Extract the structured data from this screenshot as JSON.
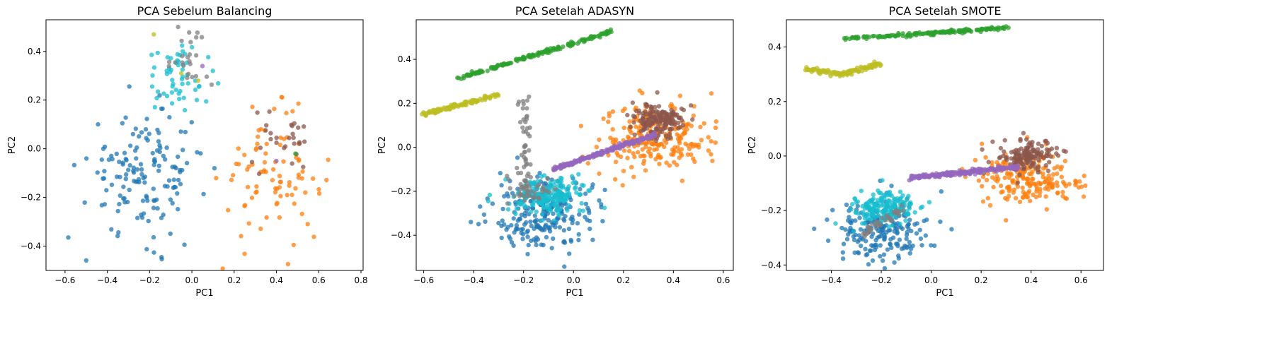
{
  "colors": {
    "c0": "#1f77b4",
    "c1": "#ff7f0e",
    "c2": "#2ca02c",
    "c3": "#9467bd",
    "c4": "#8c564b",
    "c5": "#7f7f7f",
    "c6": "#bcbd22",
    "c7": "#17becf"
  },
  "chart_data": [
    {
      "type": "scatter",
      "title": "PCA Sebelum Balancing",
      "xlabel": "PC1",
      "ylabel": "PC2",
      "xlim": [
        -0.69,
        0.81
      ],
      "ylim": [
        -0.5,
        0.53
      ],
      "xticks": [
        -0.6,
        -0.4,
        -0.2,
        0.0,
        0.2,
        0.4,
        0.6,
        0.8
      ],
      "xtick_labels": [
        "−0.6",
        "−0.4",
        "−0.2",
        "0.0",
        "0.2",
        "0.4",
        "0.6",
        "0.8"
      ],
      "yticks": [
        -0.4,
        -0.2,
        0.0,
        0.2,
        0.4
      ],
      "ytick_labels": [
        "−0.4",
        "−0.2",
        "0.0",
        "0.2",
        "0.4"
      ],
      "grid": false,
      "series": [
        {
          "color_key": "c0",
          "clusters": [
            {
              "cx": -0.22,
              "cy": -0.1,
              "sx": 0.14,
              "sy": 0.13,
              "n": 150
            }
          ]
        },
        {
          "color_key": "c1",
          "clusters": [
            {
              "cx": 0.38,
              "cy": -0.12,
              "sx": 0.12,
              "sy": 0.13,
              "n": 90
            }
          ]
        },
        {
          "color_key": "c4",
          "clusters": [
            {
              "cx": 0.42,
              "cy": 0.02,
              "sx": 0.08,
              "sy": 0.06,
              "n": 28
            }
          ]
        },
        {
          "color_key": "c7",
          "clusters": [
            {
              "cx": -0.05,
              "cy": 0.3,
              "sx": 0.08,
              "sy": 0.07,
              "n": 55
            }
          ]
        },
        {
          "color_key": "c5",
          "clusters": [
            {
              "cx": -0.02,
              "cy": 0.38,
              "sx": 0.06,
              "sy": 0.06,
              "n": 24
            }
          ]
        },
        {
          "color_key": "c6",
          "points": [
            [
              -0.18,
              0.47
            ],
            [
              0.03,
              0.28
            ],
            [
              -0.05,
              0.31
            ]
          ]
        },
        {
          "color_key": "c2",
          "points": [
            [
              0.49,
              -0.02
            ]
          ]
        },
        {
          "color_key": "c3",
          "points": [
            [
              0.05,
              0.34
            ],
            [
              0.4,
              -0.05
            ]
          ]
        }
      ]
    },
    {
      "type": "scatter",
      "title": "PCA Setelah ADASYN",
      "xlabel": "PC1",
      "ylabel": "PC2",
      "xlim": [
        -0.63,
        0.64
      ],
      "ylim": [
        -0.56,
        0.58
      ],
      "xticks": [
        -0.6,
        -0.4,
        -0.2,
        0.0,
        0.2,
        0.4,
        0.6
      ],
      "xtick_labels": [
        "−0.6",
        "−0.4",
        "−0.2",
        "0.0",
        "0.2",
        "0.4",
        "0.6"
      ],
      "yticks": [
        -0.4,
        -0.2,
        0.0,
        0.2,
        0.4
      ],
      "ytick_labels": [
        "−0.4",
        "−0.2",
        "0.0",
        "0.2",
        "0.4"
      ],
      "grid": false,
      "series": [
        {
          "color_key": "c0",
          "clusters": [
            {
              "cx": -0.12,
              "cy": -0.3,
              "sx": 0.1,
              "sy": 0.08,
              "n": 220
            }
          ]
        },
        {
          "color_key": "c1",
          "clusters": [
            {
              "cx": 0.33,
              "cy": 0.05,
              "sx": 0.11,
              "sy": 0.08,
              "n": 240
            }
          ]
        },
        {
          "color_key": "c4",
          "clusters": [
            {
              "cx": 0.34,
              "cy": 0.12,
              "sx": 0.05,
              "sy": 0.04,
              "n": 160
            }
          ]
        },
        {
          "color_key": "c7",
          "clusters": [
            {
              "cx": -0.1,
              "cy": -0.22,
              "sx": 0.07,
              "sy": 0.04,
              "n": 200
            }
          ]
        },
        {
          "color_key": "c5",
          "clusters": [
            {
              "cx": -0.18,
              "cy": -0.2,
              "sx": 0.04,
              "sy": 0.03,
              "n": 40
            }
          ],
          "lines": [
            {
              "x0": -0.2,
              "y0": 0.23,
              "x1": -0.19,
              "y1": -0.15,
              "n": 45,
              "jitter": 0.012
            }
          ]
        },
        {
          "color_key": "c2",
          "lines": [
            {
              "x0": -0.47,
              "y0": 0.31,
              "x1": 0.16,
              "y1": 0.53,
              "n": 160,
              "jitter": 0.004
            }
          ]
        },
        {
          "color_key": "c6",
          "lines": [
            {
              "x0": -0.6,
              "y0": 0.15,
              "x1": -0.3,
              "y1": 0.24,
              "n": 110,
              "jitter": 0.005
            }
          ]
        },
        {
          "color_key": "c3",
          "lines": [
            {
              "x0": -0.08,
              "y0": -0.1,
              "x1": 0.33,
              "y1": 0.06,
              "n": 220,
              "jitter": 0.004
            }
          ]
        }
      ]
    },
    {
      "type": "scatter",
      "title": "PCA Setelah SMOTE",
      "xlabel": "PC1",
      "ylabel": "PC2",
      "xlim": [
        -0.58,
        0.69
      ],
      "ylim": [
        -0.42,
        0.5
      ],
      "xticks": [
        -0.4,
        -0.2,
        0.0,
        0.2,
        0.4,
        0.6
      ],
      "xtick_labels": [
        "−0.4",
        "−0.2",
        "0.0",
        "0.2",
        "0.4",
        "0.6"
      ],
      "yticks": [
        -0.4,
        -0.2,
        0.0,
        0.2,
        0.4
      ],
      "ytick_labels": [
        "−0.4",
        "−0.2",
        "0.0",
        "0.2",
        "0.4"
      ],
      "grid": false,
      "series": [
        {
          "color_key": "c0",
          "clusters": [
            {
              "cx": -0.2,
              "cy": -0.27,
              "sx": 0.1,
              "sy": 0.06,
              "n": 200
            }
          ]
        },
        {
          "color_key": "c1",
          "clusters": [
            {
              "cx": 0.4,
              "cy": -0.09,
              "sx": 0.1,
              "sy": 0.05,
              "n": 200
            }
          ]
        },
        {
          "color_key": "c4",
          "clusters": [
            {
              "cx": 0.38,
              "cy": 0.0,
              "sx": 0.06,
              "sy": 0.03,
              "n": 150
            }
          ]
        },
        {
          "color_key": "c7",
          "clusters": [
            {
              "cx": -0.18,
              "cy": -0.19,
              "sx": 0.06,
              "sy": 0.03,
              "n": 180
            }
          ]
        },
        {
          "color_key": "c5",
          "lines": [
            {
              "x0": -0.28,
              "y0": -0.29,
              "x1": -0.12,
              "y1": -0.2,
              "n": 40,
              "jitter": 0.01
            }
          ]
        },
        {
          "color_key": "c2",
          "lines": [
            {
              "x0": -0.35,
              "y0": 0.43,
              "x1": 0.31,
              "y1": 0.47,
              "n": 160,
              "jitter": 0.003
            }
          ]
        },
        {
          "color_key": "c6",
          "lines": [
            {
              "x0": -0.5,
              "y0": 0.32,
              "x1": -0.36,
              "y1": 0.3,
              "n": 50,
              "jitter": 0.004
            },
            {
              "x0": -0.36,
              "y0": 0.3,
              "x1": -0.2,
              "y1": 0.34,
              "n": 60,
              "jitter": 0.004
            }
          ]
        },
        {
          "color_key": "c3",
          "lines": [
            {
              "x0": -0.09,
              "y0": -0.08,
              "x1": 0.35,
              "y1": -0.04,
              "n": 200,
              "jitter": 0.004
            }
          ]
        }
      ]
    }
  ]
}
